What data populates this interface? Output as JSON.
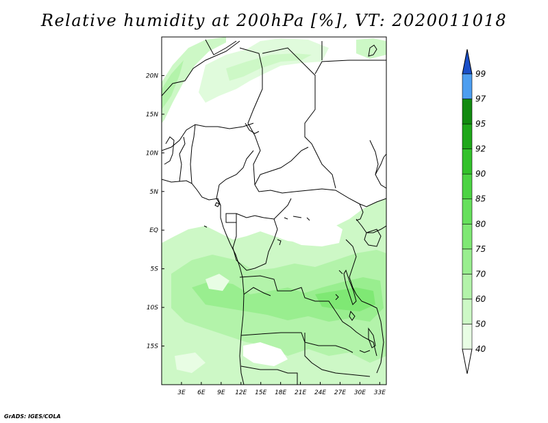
{
  "title": "Relative humidity at 200hPa [%], VT: 2020011018",
  "credit": "GrADS: IGES/COLA",
  "chart_data": {
    "type": "heatmap",
    "variable": "Relative humidity",
    "level": "200hPa",
    "unit": "%",
    "valid_time": "2020011018",
    "lon_range": [
      0,
      34
    ],
    "lat_range": [
      -20,
      25
    ],
    "x_ticks": [
      "3E",
      "6E",
      "9E",
      "12E",
      "15E",
      "18E",
      "21E",
      "24E",
      "27E",
      "30E",
      "33E"
    ],
    "x_tick_values": [
      3,
      6,
      9,
      12,
      15,
      18,
      21,
      24,
      27,
      30,
      33
    ],
    "y_ticks": [
      "20N",
      "15N",
      "10N",
      "5N",
      "EQ",
      "5S",
      "10S",
      "15S"
    ],
    "y_tick_values": [
      20,
      15,
      10,
      5,
      0,
      -5,
      -10,
      -15
    ],
    "colorbar": {
      "levels": [
        "40",
        "50",
        "60",
        "70",
        "75",
        "80",
        "85",
        "90",
        "92",
        "95",
        "97",
        "99"
      ],
      "colors": [
        "#e8fde4",
        "#cdf8c6",
        "#b3f3aa",
        "#99ee8f",
        "#7fe874",
        "#66e05c",
        "#4cd343",
        "#33c12b",
        "#1fa71a",
        "#128a10",
        "#4d9ef0",
        "#2a6fe0",
        "#1a4fc8"
      ]
    }
  }
}
